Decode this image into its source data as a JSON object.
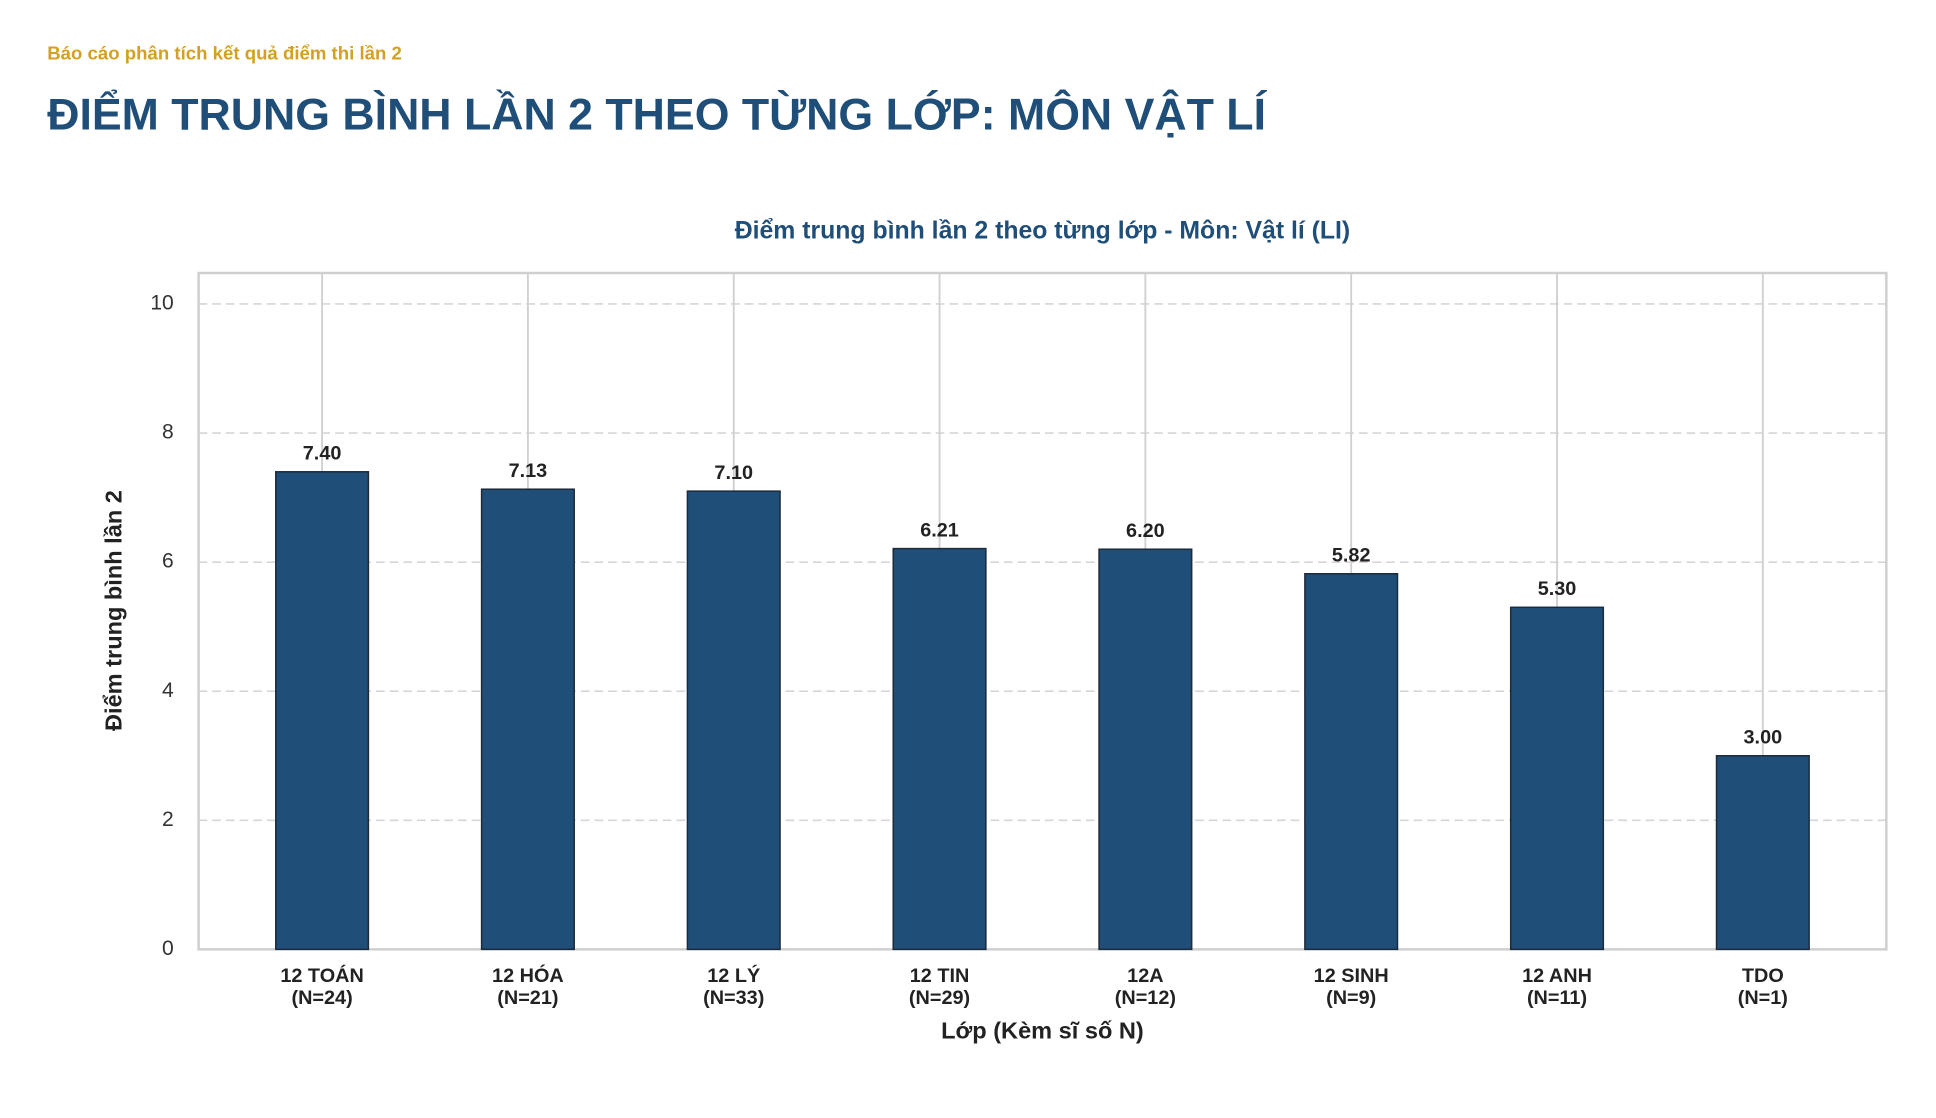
{
  "header": {
    "subtitle": "Báo cáo phân tích kết quả điểm thi lần 2",
    "title": "ĐIỂM TRUNG BÌNH LẦN 2 THEO TỪNG LỚP: MÔN VẬT LÍ"
  },
  "chart_data": {
    "type": "bar",
    "title": "Điểm trung bình lần 2 theo từng lớp - Môn: Vật lí (LI)",
    "xlabel": "Lớp (Kèm sĩ số N)",
    "ylabel": "Điểm trung bình lần 2",
    "categories": [
      "12 TOÁN",
      "12 HÓA",
      "12 LÝ",
      "12 TIN",
      "12A",
      "12 SINH",
      "12 ANH",
      "TDO"
    ],
    "category_sizes": [
      "(N=24)",
      "(N=21)",
      "(N=33)",
      "(N=29)",
      "(N=12)",
      "(N=9)",
      "(N=11)",
      "(N=1)"
    ],
    "values": [
      7.4,
      7.13,
      7.1,
      6.21,
      6.2,
      5.82,
      5.3,
      3.0
    ],
    "value_labels": [
      "7.40",
      "7.13",
      "7.10",
      "6.21",
      "6.20",
      "5.82",
      "5.30",
      "3.00"
    ],
    "color": "#1f4e79",
    "edge_color": "#1c2a3a",
    "ylim": [
      0,
      10.48
    ],
    "yticks": [
      0,
      2,
      4,
      6,
      8,
      10
    ],
    "grid": true
  }
}
